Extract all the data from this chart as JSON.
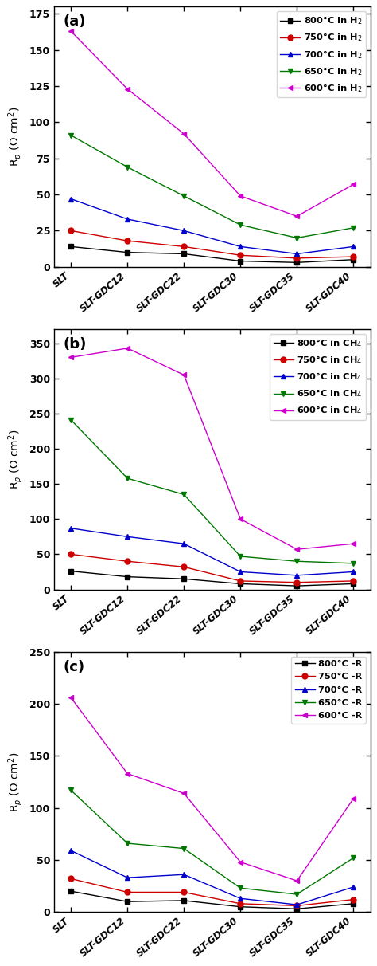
{
  "x_labels": [
    "SLT",
    "SLT-GDC12",
    "SLT-GDC22",
    "SLT-GDC30",
    "SLT-GDC35",
    "SLT-GDC40"
  ],
  "panel_a": {
    "title": "(a)",
    "ylabel": "R$_p$ (Ω cm$^2$)",
    "ylim": [
      0,
      180
    ],
    "yticks": [
      0,
      25,
      50,
      75,
      100,
      125,
      150,
      175
    ],
    "series": [
      {
        "label": "800°C in H$_2$",
        "color": "#000000",
        "marker": "s",
        "values": [
          14,
          10,
          9,
          4,
          3,
          5
        ]
      },
      {
        "label": "750°C in H$_2$",
        "color": "#cc0000",
        "marker": "o",
        "values": [
          25,
          18,
          14,
          8,
          6,
          7
        ]
      },
      {
        "label": "700°C in H$_2$",
        "color": "#0000cc",
        "marker": "^",
        "values": [
          47,
          33,
          25,
          14,
          9,
          14
        ]
      },
      {
        "label": "650°C in H$_2$",
        "color": "#007700",
        "marker": "v",
        "values": [
          91,
          69,
          49,
          29,
          20,
          27
        ]
      },
      {
        "label": "600°C in H$_2$",
        "color": "#cc00cc",
        "marker": "<",
        "values": [
          163,
          123,
          92,
          49,
          35,
          57
        ]
      }
    ]
  },
  "panel_b": {
    "title": "(b)",
    "ylabel": "R$_p$ (Ω cm$^2$)",
    "ylim": [
      0,
      370
    ],
    "yticks": [
      0,
      50,
      100,
      150,
      200,
      250,
      300,
      350
    ],
    "series": [
      {
        "label": "800°C in CH$_4$",
        "color": "#000000",
        "marker": "s",
        "values": [
          26,
          18,
          15,
          8,
          5,
          8
        ]
      },
      {
        "label": "750°C in CH$_4$",
        "color": "#cc0000",
        "marker": "o",
        "values": [
          50,
          40,
          32,
          12,
          10,
          12
        ]
      },
      {
        "label": "700°C in CH$_4$",
        "color": "#0000cc",
        "marker": "^",
        "values": [
          87,
          75,
          65,
          25,
          20,
          25
        ]
      },
      {
        "label": "650°C in CH$_4$",
        "color": "#007700",
        "marker": "v",
        "values": [
          241,
          158,
          135,
          47,
          40,
          37
        ]
      },
      {
        "label": "600°C in CH$_4$",
        "color": "#cc00cc",
        "marker": "<",
        "values": [
          330,
          343,
          305,
          100,
          57,
          65
        ]
      }
    ]
  },
  "panel_c": {
    "title": "(c)",
    "ylabel": "R$_p$ (Ω cm$^2$)",
    "ylim": [
      0,
      250
    ],
    "yticks": [
      0,
      50,
      100,
      150,
      200,
      250
    ],
    "series": [
      {
        "label": "800°C -R",
        "color": "#000000",
        "marker": "s",
        "values": [
          20,
          10,
          11,
          5,
          3,
          8
        ]
      },
      {
        "label": "750°C -R",
        "color": "#cc0000",
        "marker": "o",
        "values": [
          32,
          19,
          19,
          8,
          6,
          12
        ]
      },
      {
        "label": "700°C -R",
        "color": "#0000cc",
        "marker": "^",
        "values": [
          59,
          33,
          36,
          13,
          7,
          24
        ]
      },
      {
        "label": "650°C -R",
        "color": "#007700",
        "marker": "v",
        "values": [
          117,
          66,
          61,
          23,
          17,
          52
        ]
      },
      {
        "label": "600°C -R",
        "color": "#cc00cc",
        "marker": "<",
        "values": [
          206,
          133,
          114,
          48,
          30,
          109
        ]
      }
    ]
  },
  "figsize": [
    4.74,
    12.12
  ],
  "dpi": 100
}
